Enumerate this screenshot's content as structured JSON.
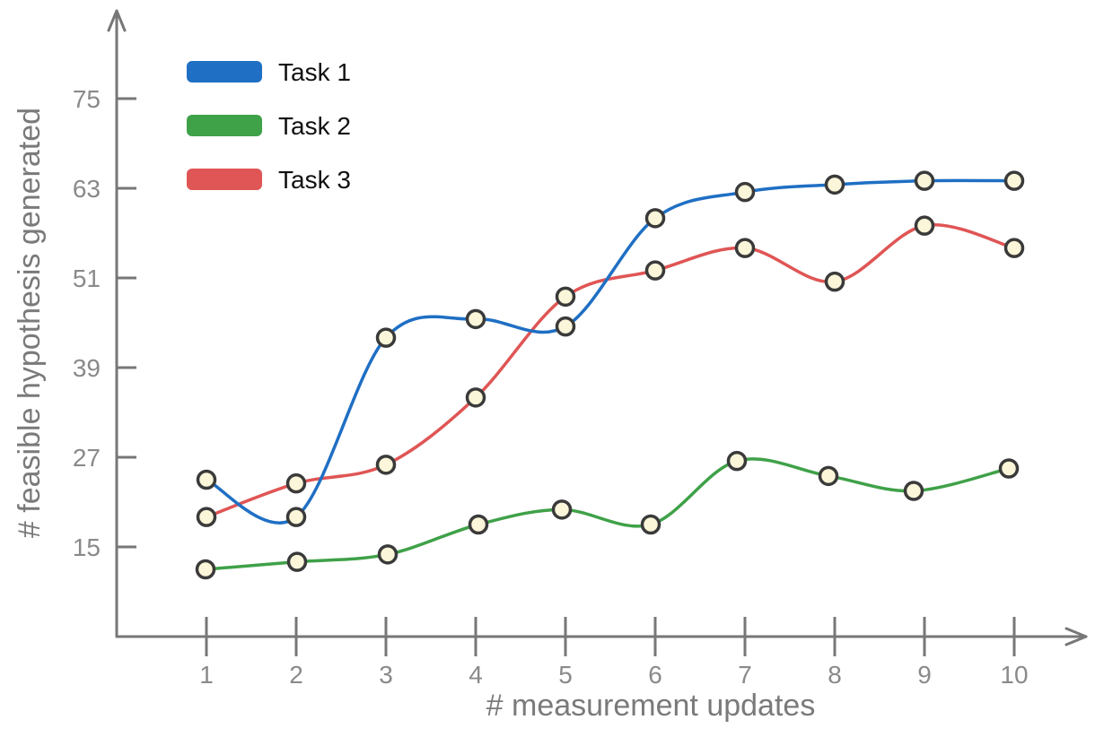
{
  "chart_data": {
    "type": "line",
    "title": "",
    "xlabel": "# measurement updates",
    "ylabel": "# feasible hypothesis generated",
    "x": [
      1,
      2,
      3,
      4,
      5,
      6,
      7,
      8,
      9,
      10
    ],
    "x_tick_labels": [
      "1",
      "2",
      "3",
      "4",
      "5",
      "6",
      "7",
      "8",
      "9",
      "10"
    ],
    "y_ticks": [
      15,
      27,
      39,
      51,
      63,
      75
    ],
    "y_tick_labels": [
      "15",
      "27",
      "39",
      "51",
      "63",
      "75"
    ],
    "xlim": [
      0,
      10.7
    ],
    "ylim": [
      3,
      86
    ],
    "legend_position": "top-left",
    "grid": false,
    "series": [
      {
        "name": "Task 1",
        "color": "#1f6fc4",
        "x": [
          1,
          2,
          3,
          4,
          5,
          6,
          7,
          8,
          9,
          10
        ],
        "values": [
          24,
          19,
          43,
          45.5,
          44.5,
          59,
          62.5,
          63.5,
          64,
          64
        ]
      },
      {
        "name": "Task 2",
        "color": "#3fa148",
        "x": [
          0.99,
          2.01,
          3.02,
          4.03,
          4.96,
          5.95,
          6.91,
          7.93,
          8.88,
          9.94
        ],
        "values": [
          12,
          13,
          14,
          18,
          20,
          18,
          26.5,
          24.5,
          22.5,
          25.5
        ]
      },
      {
        "name": "Task 3",
        "color": "#e05555",
        "x": [
          1,
          2,
          3,
          4,
          5,
          6,
          7,
          8,
          9,
          10
        ],
        "values": [
          19,
          23.5,
          26,
          35,
          48.5,
          52,
          55,
          50.5,
          58,
          55
        ]
      }
    ]
  }
}
